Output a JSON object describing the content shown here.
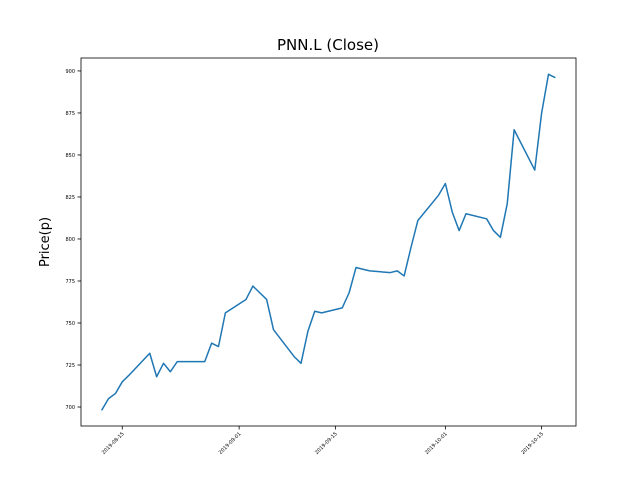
{
  "chart_data": {
    "type": "line",
    "title": "PNN.L (Close)",
    "y_label": "Price(p)",
    "x": [
      "2019-08-12",
      "2019-08-13",
      "2019-08-14",
      "2019-08-15",
      "2019-08-16",
      "2019-08-19",
      "2019-08-20",
      "2019-08-21",
      "2019-08-22",
      "2019-08-23",
      "2019-08-27",
      "2019-08-28",
      "2019-08-29",
      "2019-08-30",
      "2019-09-02",
      "2019-09-03",
      "2019-09-04",
      "2019-09-05",
      "2019-09-06",
      "2019-09-09",
      "2019-09-10",
      "2019-09-11",
      "2019-09-12",
      "2019-09-13",
      "2019-09-16",
      "2019-09-17",
      "2019-09-18",
      "2019-09-19",
      "2019-09-20",
      "2019-09-23",
      "2019-09-24",
      "2019-09-25",
      "2019-09-26",
      "2019-09-27",
      "2019-09-30",
      "2019-10-01",
      "2019-10-02",
      "2019-10-03",
      "2019-10-04",
      "2019-10-07",
      "2019-10-08",
      "2019-10-09",
      "2019-10-10",
      "2019-10-11",
      "2019-10-14",
      "2019-10-15",
      "2019-10-16",
      "2019-10-17"
    ],
    "values": [
      698,
      705,
      708,
      715,
      719,
      732,
      718,
      726,
      721,
      727,
      727,
      738,
      736,
      756,
      764,
      772,
      768,
      764,
      746,
      730,
      726,
      745,
      757,
      756,
      759,
      768,
      783,
      782,
      781,
      780,
      781,
      778,
      795,
      811,
      826,
      833,
      816,
      805,
      815,
      812,
      805,
      801,
      821,
      865,
      841,
      875,
      898,
      896
    ],
    "color": "#1f77b4",
    "xlim": [
      "2019-08-09",
      "2019-10-20"
    ],
    "xticks": [
      "2019-08-15",
      "2019-09-01",
      "2019-09-15",
      "2019-10-01",
      "2019-10-15"
    ],
    "ylim": [
      688.7,
      907.7
    ],
    "yticks": [
      700,
      725,
      750,
      775,
      800,
      825,
      850,
      875,
      900
    ]
  }
}
